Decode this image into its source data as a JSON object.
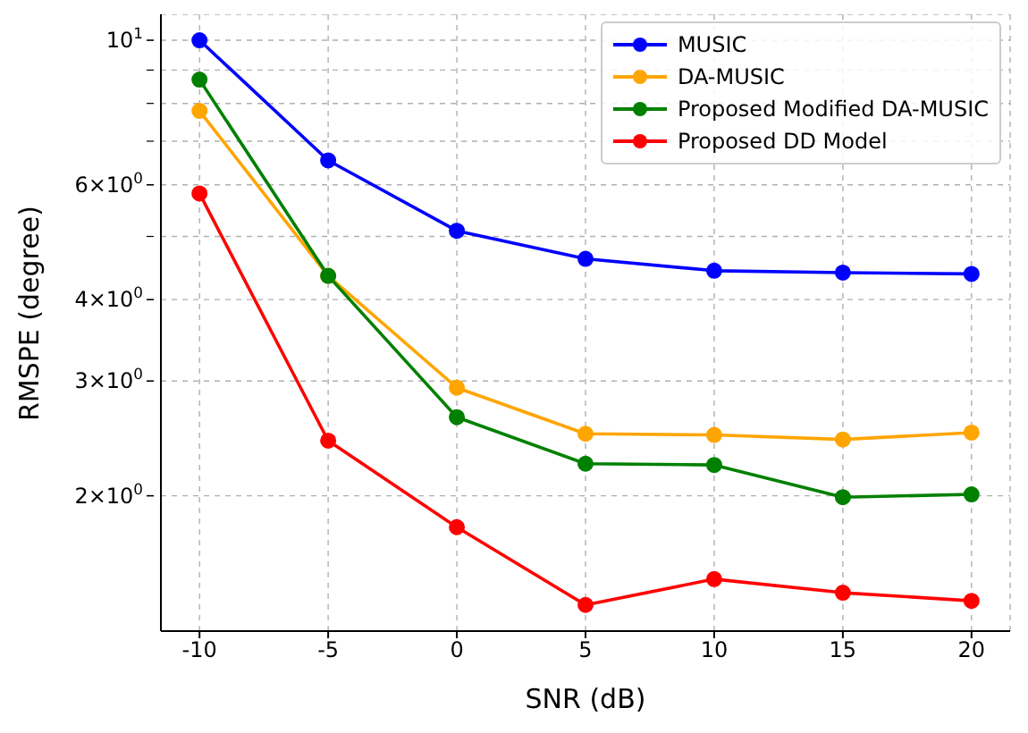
{
  "chart_data": {
    "type": "line",
    "xlabel": "SNR (dB)",
    "ylabel": "RMSPE (degree)",
    "x": [
      -10,
      -5,
      0,
      5,
      10,
      15,
      20
    ],
    "series": [
      {
        "name": "MUSIC",
        "color": "#0000ff",
        "values": [
          10,
          6.54,
          5.1,
          4.62,
          4.43,
          4.4,
          4.38
        ]
      },
      {
        "name": "DA-MUSIC",
        "color": "#ffa500",
        "values": [
          7.79,
          4.35,
          2.93,
          2.49,
          2.48,
          2.44,
          2.5
        ]
      },
      {
        "name": "Proposed Modified DA-MUSIC",
        "color": "#008000",
        "values": [
          8.7,
          4.35,
          2.64,
          2.24,
          2.23,
          1.99,
          2.01
        ]
      },
      {
        "name": "Proposed DD Model",
        "color": "#ff0000",
        "values": [
          5.82,
          2.43,
          1.79,
          1.36,
          1.49,
          1.42,
          1.38
        ]
      }
    ],
    "xlim": [
      -11.5,
      21.5
    ],
    "xticks": [
      -10,
      -5,
      0,
      5,
      10,
      15,
      20
    ],
    "ylim": [
      1.24,
      10.96
    ],
    "yticks": [
      {
        "value": 2,
        "label": "2×10$^{0}$"
      },
      {
        "value": 3,
        "label": "3×10$^{0}$"
      },
      {
        "value": 4,
        "label": "4×10$^{0}$"
      },
      {
        "value": 5,
        "label": null
      },
      {
        "value": 6,
        "label": "6×10$^{0}$"
      },
      {
        "value": 7,
        "label": null
      },
      {
        "value": 8,
        "label": null
      },
      {
        "value": 9,
        "label": null
      },
      {
        "value": 10,
        "label": "10$^{1}$"
      }
    ],
    "log": "y",
    "grid": true,
    "legend": "top right",
    "marker": "circle",
    "line_style": "solid"
  }
}
